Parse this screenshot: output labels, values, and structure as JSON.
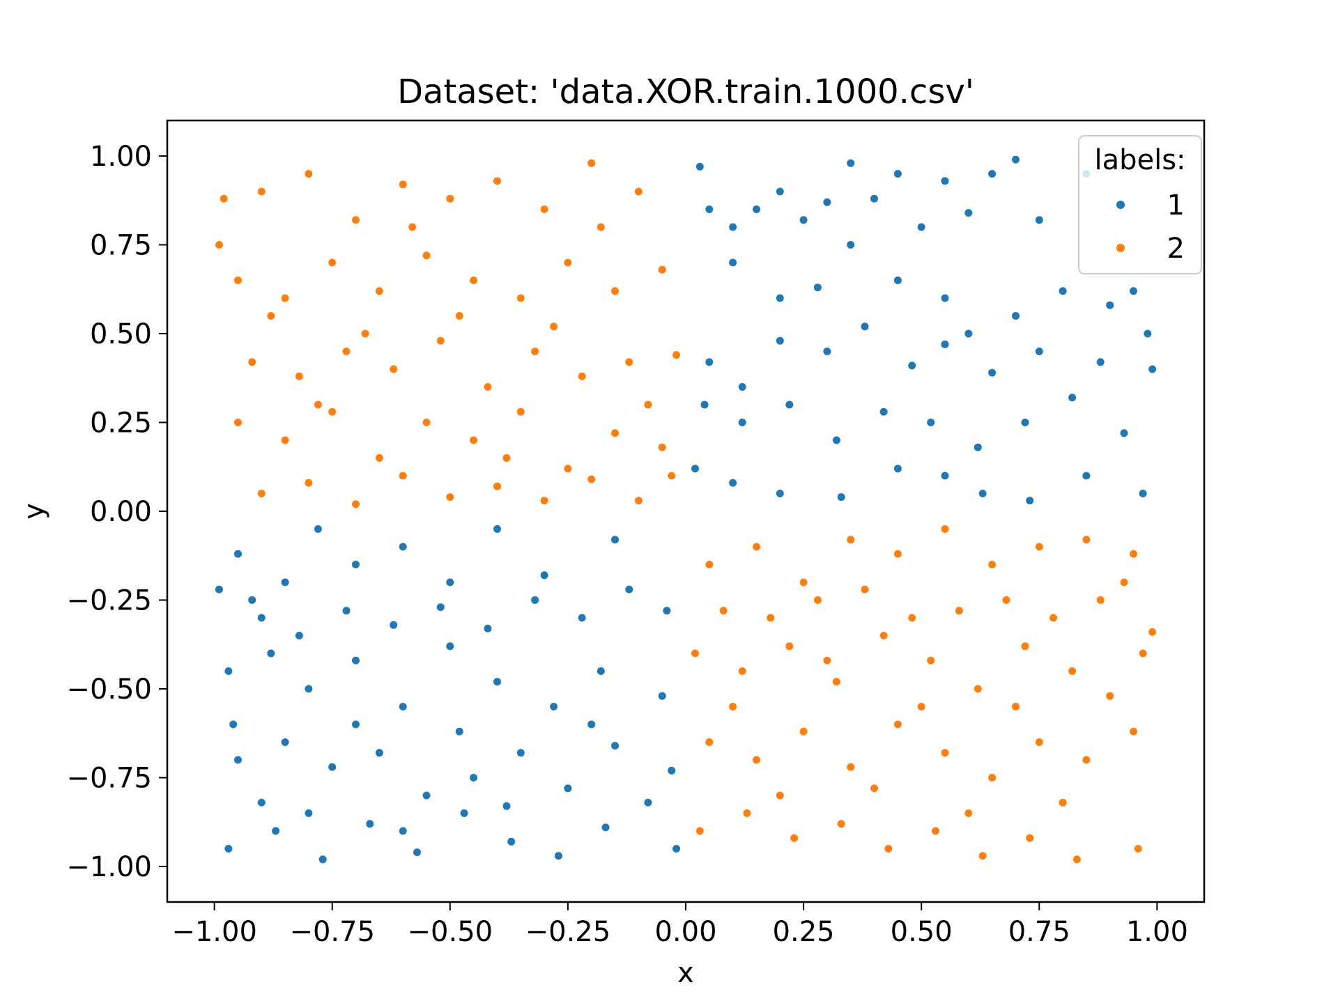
{
  "chart_data": {
    "type": "scatter",
    "title": "Dataset: 'data.XOR.train.1000.csv'",
    "xlabel": "x",
    "ylabel": "y",
    "xlim": [
      -1.1,
      1.1
    ],
    "ylim": [
      -1.1,
      1.1
    ],
    "xticks": [
      -1.0,
      -0.75,
      -0.5,
      -0.25,
      0.0,
      0.25,
      0.5,
      0.75,
      1.0
    ],
    "xtick_labels": [
      "−1.00",
      "−0.75",
      "−0.50",
      "−0.25",
      "0.00",
      "0.25",
      "0.50",
      "0.75",
      "1.00"
    ],
    "yticks": [
      1.0,
      0.75,
      0.5,
      0.25,
      0.0,
      -0.25,
      -0.5,
      -0.75,
      -1.0
    ],
    "ytick_labels": [
      "1.00",
      "0.75",
      "0.50",
      "0.25",
      "0.00",
      "−0.25",
      "−0.50",
      "−0.75",
      "−1.00"
    ],
    "grid": false,
    "legend": {
      "title": "labels:",
      "placement": "top-right",
      "entries": [
        "1",
        "2"
      ]
    },
    "series": [
      {
        "name": "1",
        "color": "#1f77b4",
        "points": [
          [
            0.05,
            0.85
          ],
          [
            0.1,
            0.8
          ],
          [
            0.2,
            0.9
          ],
          [
            0.3,
            0.87
          ],
          [
            0.35,
            0.98
          ],
          [
            0.45,
            0.95
          ],
          [
            0.55,
            0.93
          ],
          [
            0.65,
            0.95
          ],
          [
            0.7,
            0.99
          ],
          [
            0.85,
            0.95
          ],
          [
            0.1,
            0.7
          ],
          [
            0.2,
            0.6
          ],
          [
            0.28,
            0.63
          ],
          [
            0.35,
            0.75
          ],
          [
            0.45,
            0.65
          ],
          [
            0.55,
            0.6
          ],
          [
            0.6,
            0.5
          ],
          [
            0.7,
            0.55
          ],
          [
            0.8,
            0.62
          ],
          [
            0.9,
            0.58
          ],
          [
            0.05,
            0.42
          ],
          [
            0.12,
            0.35
          ],
          [
            0.2,
            0.48
          ],
          [
            0.3,
            0.45
          ],
          [
            0.38,
            0.52
          ],
          [
            0.48,
            0.41
          ],
          [
            0.55,
            0.47
          ],
          [
            0.65,
            0.39
          ],
          [
            0.75,
            0.45
          ],
          [
            0.88,
            0.42
          ],
          [
            0.04,
            0.3
          ],
          [
            0.12,
            0.25
          ],
          [
            0.22,
            0.3
          ],
          [
            0.32,
            0.2
          ],
          [
            0.42,
            0.28
          ],
          [
            0.52,
            0.25
          ],
          [
            0.62,
            0.18
          ],
          [
            0.72,
            0.25
          ],
          [
            0.82,
            0.32
          ],
          [
            0.93,
            0.22
          ],
          [
            0.02,
            0.12
          ],
          [
            0.1,
            0.08
          ],
          [
            0.2,
            0.05
          ],
          [
            0.33,
            0.04
          ],
          [
            0.45,
            0.12
          ],
          [
            0.55,
            0.1
          ],
          [
            0.63,
            0.05
          ],
          [
            0.73,
            0.03
          ],
          [
            0.85,
            0.1
          ],
          [
            0.97,
            0.05
          ],
          [
            0.03,
            0.97
          ],
          [
            0.15,
            0.85
          ],
          [
            0.25,
            0.82
          ],
          [
            0.4,
            0.88
          ],
          [
            0.5,
            0.8
          ],
          [
            0.6,
            0.84
          ],
          [
            0.75,
            0.82
          ],
          [
            0.95,
            0.62
          ],
          [
            0.98,
            0.5
          ],
          [
            0.99,
            0.4
          ],
          [
            -0.95,
            -0.12
          ],
          [
            -0.9,
            -0.3
          ],
          [
            -0.85,
            -0.2
          ],
          [
            -0.78,
            -0.05
          ],
          [
            -0.7,
            -0.15
          ],
          [
            -0.6,
            -0.1
          ],
          [
            -0.5,
            -0.2
          ],
          [
            -0.4,
            -0.05
          ],
          [
            -0.3,
            -0.18
          ],
          [
            -0.15,
            -0.08
          ],
          [
            -0.97,
            -0.45
          ],
          [
            -0.88,
            -0.4
          ],
          [
            -0.8,
            -0.5
          ],
          [
            -0.7,
            -0.42
          ],
          [
            -0.6,
            -0.55
          ],
          [
            -0.5,
            -0.38
          ],
          [
            -0.4,
            -0.48
          ],
          [
            -0.28,
            -0.55
          ],
          [
            -0.18,
            -0.45
          ],
          [
            -0.05,
            -0.52
          ],
          [
            -0.95,
            -0.7
          ],
          [
            -0.85,
            -0.65
          ],
          [
            -0.75,
            -0.72
          ],
          [
            -0.65,
            -0.68
          ],
          [
            -0.55,
            -0.8
          ],
          [
            -0.45,
            -0.75
          ],
          [
            -0.35,
            -0.68
          ],
          [
            -0.25,
            -0.78
          ],
          [
            -0.15,
            -0.66
          ],
          [
            -0.03,
            -0.73
          ],
          [
            -0.97,
            -0.95
          ],
          [
            -0.87,
            -0.9
          ],
          [
            -0.77,
            -0.98
          ],
          [
            -0.67,
            -0.88
          ],
          [
            -0.57,
            -0.96
          ],
          [
            -0.47,
            -0.85
          ],
          [
            -0.37,
            -0.93
          ],
          [
            -0.27,
            -0.97
          ],
          [
            -0.17,
            -0.89
          ],
          [
            -0.02,
            -0.95
          ],
          [
            -0.92,
            -0.25
          ],
          [
            -0.82,
            -0.35
          ],
          [
            -0.72,
            -0.28
          ],
          [
            -0.62,
            -0.32
          ],
          [
            -0.52,
            -0.27
          ],
          [
            -0.42,
            -0.33
          ],
          [
            -0.32,
            -0.25
          ],
          [
            -0.22,
            -0.3
          ],
          [
            -0.12,
            -0.22
          ],
          [
            -0.04,
            -0.28
          ],
          [
            -0.99,
            -0.22
          ],
          [
            -0.96,
            -0.6
          ],
          [
            -0.9,
            -0.82
          ],
          [
            -0.8,
            -0.85
          ],
          [
            -0.7,
            -0.6
          ],
          [
            -0.6,
            -0.9
          ],
          [
            -0.48,
            -0.62
          ],
          [
            -0.38,
            -0.83
          ],
          [
            -0.2,
            -0.6
          ],
          [
            -0.08,
            -0.82
          ]
        ]
      },
      {
        "name": "2",
        "color": "#ff7f0e",
        "points": [
          [
            -0.98,
            0.88
          ],
          [
            -0.9,
            0.9
          ],
          [
            -0.8,
            0.95
          ],
          [
            -0.7,
            0.82
          ],
          [
            -0.6,
            0.92
          ],
          [
            -0.5,
            0.88
          ],
          [
            -0.4,
            0.93
          ],
          [
            -0.3,
            0.85
          ],
          [
            -0.2,
            0.98
          ],
          [
            -0.1,
            0.9
          ],
          [
            -0.95,
            0.65
          ],
          [
            -0.85,
            0.6
          ],
          [
            -0.75,
            0.7
          ],
          [
            -0.65,
            0.62
          ],
          [
            -0.55,
            0.72
          ],
          [
            -0.45,
            0.65
          ],
          [
            -0.35,
            0.6
          ],
          [
            -0.25,
            0.7
          ],
          [
            -0.15,
            0.62
          ],
          [
            -0.05,
            0.68
          ],
          [
            -0.92,
            0.42
          ],
          [
            -0.82,
            0.38
          ],
          [
            -0.72,
            0.45
          ],
          [
            -0.62,
            0.4
          ],
          [
            -0.52,
            0.48
          ],
          [
            -0.42,
            0.35
          ],
          [
            -0.32,
            0.45
          ],
          [
            -0.22,
            0.38
          ],
          [
            -0.12,
            0.42
          ],
          [
            -0.02,
            0.44
          ],
          [
            -0.95,
            0.25
          ],
          [
            -0.85,
            0.2
          ],
          [
            -0.75,
            0.28
          ],
          [
            -0.65,
            0.15
          ],
          [
            -0.55,
            0.25
          ],
          [
            -0.45,
            0.2
          ],
          [
            -0.35,
            0.28
          ],
          [
            -0.25,
            0.12
          ],
          [
            -0.15,
            0.22
          ],
          [
            -0.05,
            0.18
          ],
          [
            -0.9,
            0.05
          ],
          [
            -0.8,
            0.08
          ],
          [
            -0.7,
            0.02
          ],
          [
            -0.6,
            0.1
          ],
          [
            -0.5,
            0.04
          ],
          [
            -0.4,
            0.07
          ],
          [
            -0.3,
            0.03
          ],
          [
            -0.2,
            0.09
          ],
          [
            -0.1,
            0.03
          ],
          [
            -0.03,
            0.1
          ],
          [
            -0.99,
            0.75
          ],
          [
            -0.88,
            0.55
          ],
          [
            -0.78,
            0.3
          ],
          [
            -0.68,
            0.5
          ],
          [
            -0.58,
            0.8
          ],
          [
            -0.48,
            0.55
          ],
          [
            -0.38,
            0.15
          ],
          [
            -0.28,
            0.52
          ],
          [
            -0.18,
            0.8
          ],
          [
            -0.08,
            0.3
          ],
          [
            0.05,
            -0.15
          ],
          [
            0.15,
            -0.1
          ],
          [
            0.25,
            -0.2
          ],
          [
            0.35,
            -0.08
          ],
          [
            0.45,
            -0.12
          ],
          [
            0.55,
            -0.05
          ],
          [
            0.65,
            -0.15
          ],
          [
            0.75,
            -0.1
          ],
          [
            0.85,
            -0.08
          ],
          [
            0.95,
            -0.12
          ],
          [
            0.02,
            -0.4
          ],
          [
            0.12,
            -0.45
          ],
          [
            0.22,
            -0.38
          ],
          [
            0.32,
            -0.48
          ],
          [
            0.42,
            -0.35
          ],
          [
            0.52,
            -0.42
          ],
          [
            0.62,
            -0.5
          ],
          [
            0.72,
            -0.38
          ],
          [
            0.82,
            -0.45
          ],
          [
            0.97,
            -0.4
          ],
          [
            0.05,
            -0.65
          ],
          [
            0.15,
            -0.7
          ],
          [
            0.25,
            -0.62
          ],
          [
            0.35,
            -0.72
          ],
          [
            0.45,
            -0.6
          ],
          [
            0.55,
            -0.68
          ],
          [
            0.65,
            -0.75
          ],
          [
            0.75,
            -0.65
          ],
          [
            0.85,
            -0.7
          ],
          [
            0.95,
            -0.62
          ],
          [
            0.03,
            -0.9
          ],
          [
            0.13,
            -0.85
          ],
          [
            0.23,
            -0.92
          ],
          [
            0.33,
            -0.88
          ],
          [
            0.43,
            -0.95
          ],
          [
            0.53,
            -0.9
          ],
          [
            0.63,
            -0.97
          ],
          [
            0.73,
            -0.92
          ],
          [
            0.83,
            -0.98
          ],
          [
            0.96,
            -0.95
          ],
          [
            0.08,
            -0.28
          ],
          [
            0.18,
            -0.3
          ],
          [
            0.28,
            -0.25
          ],
          [
            0.38,
            -0.22
          ],
          [
            0.48,
            -0.3
          ],
          [
            0.58,
            -0.28
          ],
          [
            0.68,
            -0.25
          ],
          [
            0.78,
            -0.3
          ],
          [
            0.88,
            -0.25
          ],
          [
            0.93,
            -0.2
          ],
          [
            0.1,
            -0.55
          ],
          [
            0.2,
            -0.8
          ],
          [
            0.3,
            -0.42
          ],
          [
            0.4,
            -0.78
          ],
          [
            0.5,
            -0.55
          ],
          [
            0.6,
            -0.85
          ],
          [
            0.7,
            -0.55
          ],
          [
            0.8,
            -0.82
          ],
          [
            0.9,
            -0.52
          ],
          [
            0.99,
            -0.34
          ]
        ]
      }
    ]
  }
}
